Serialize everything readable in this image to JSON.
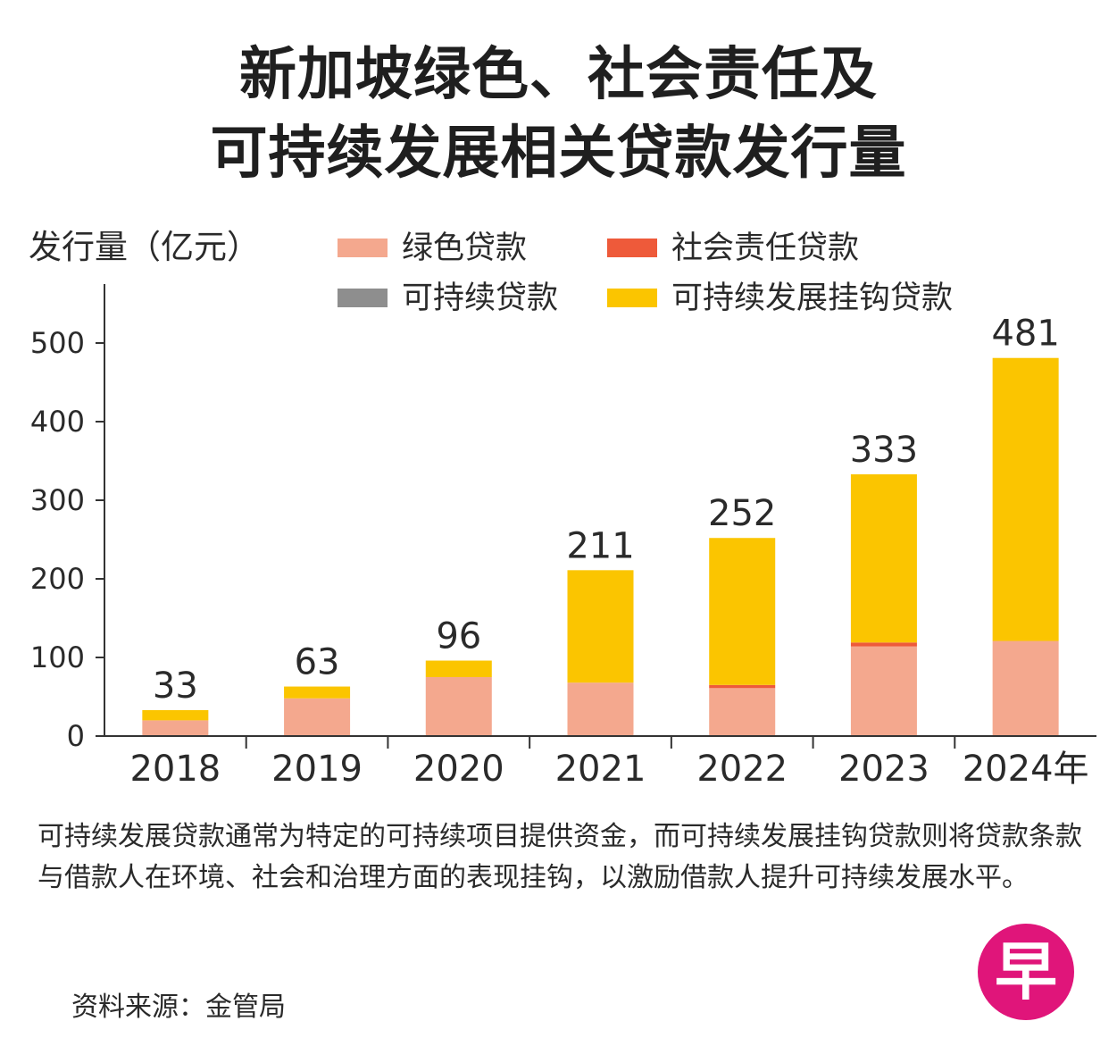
{
  "title": {
    "line1": "新加坡绿色、社会责任及",
    "line2": "可持续发展相关贷款发行量"
  },
  "chart_data": {
    "type": "bar",
    "stacked": true,
    "ylabel": "发行量（亿元）",
    "ylim": [
      0,
      560
    ],
    "yticks": [
      0,
      100,
      200,
      300,
      400,
      500
    ],
    "categories": [
      "2018",
      "2019",
      "2020",
      "2021",
      "2022",
      "2023",
      "2024年"
    ],
    "series": [
      {
        "name": "绿色贷款",
        "color": "#f4a88e",
        "values": [
          20,
          48,
          75,
          68,
          61,
          114,
          121
        ]
      },
      {
        "name": "社会责任贷款",
        "color": "#ee5a3a",
        "values": [
          0,
          0,
          0,
          0,
          4,
          5,
          0
        ]
      },
      {
        "name": "可持续贷款",
        "color": "#8e8e8e",
        "values": [
          0,
          0,
          0,
          0,
          0,
          0,
          0
        ]
      },
      {
        "name": "可持续发展挂钩贷款",
        "color": "#fbc500",
        "values": [
          13,
          15,
          21,
          143,
          187,
          214,
          360
        ]
      }
    ],
    "totals": [
      33,
      63,
      96,
      211,
      252,
      333,
      481
    ],
    "grid": false,
    "legend_position": "top"
  },
  "note": "可持续发展贷款通常为特定的可持续项目提供资金，而可持续发展挂钩贷款则将贷款条款与借款人在环境、社会和治理方面的表现挂钩，以激励借款人提升可持续发展水平。",
  "source": "资料来源：金管局",
  "logo": {
    "text": "早",
    "color": "#e0157a"
  }
}
